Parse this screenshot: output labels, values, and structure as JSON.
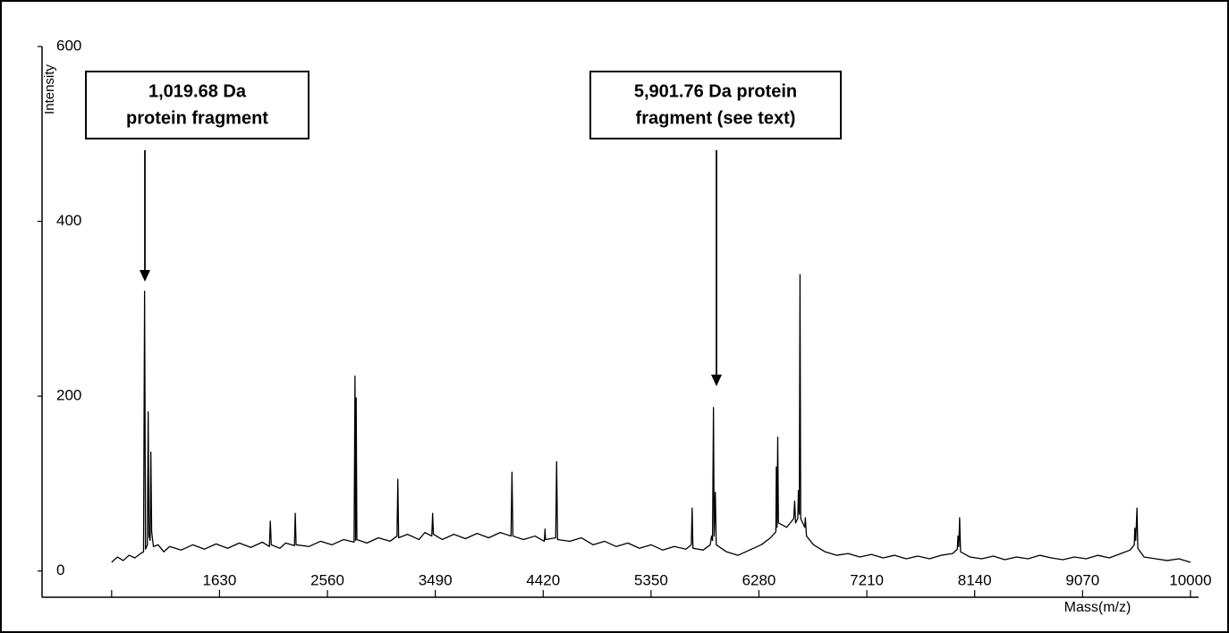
{
  "chart_data": {
    "type": "line",
    "x_label": "Mass(m/z)",
    "y_label": "Intensity",
    "color": "#000000",
    "grid": false,
    "xlim": [
      100,
      10070
    ],
    "ylim": [
      -30,
      600
    ],
    "xticks": [
      {
        "value": 700,
        "label": null
      },
      1630,
      2560,
      3490,
      4420,
      5350,
      6280,
      7210,
      8140,
      9070,
      10000
    ],
    "yticks": [
      0,
      200,
      400,
      600
    ],
    "annotations": [
      {
        "lines": [
          "1,019.68 Da",
          "protein fragment"
        ]
      },
      {
        "lines": [
          "5,901.76 Da protein",
          "fragment (see text)"
        ]
      }
    ],
    "x": [
      700,
      750,
      800,
      850,
      900,
      950,
      975,
      984,
      992,
      1008,
      1015,
      1022,
      1032,
      1038,
      1045,
      1060,
      1100,
      1150,
      1200,
      1300,
      1400,
      1500,
      1600,
      1700,
      1800,
      1900,
      2000,
      2060,
      2068,
      2076,
      2150,
      2200,
      2276,
      2283,
      2290,
      2400,
      2500,
      2600,
      2700,
      2790,
      2798,
      2803,
      2808,
      2814,
      2900,
      3000,
      3100,
      3160,
      3167,
      3174,
      3250,
      3350,
      3400,
      3460,
      3467,
      3474,
      3550,
      3650,
      3750,
      3850,
      3950,
      4050,
      4143,
      4151,
      4159,
      4250,
      4350,
      4430,
      4436,
      4440,
      4528,
      4536,
      4544,
      4650,
      4750,
      4850,
      4950,
      5050,
      5150,
      5250,
      5350,
      5450,
      5550,
      5650,
      5697,
      5704,
      5711,
      5800,
      5860,
      5872,
      5880,
      5888,
      5894,
      5904,
      5912,
      6000,
      6100,
      6200,
      6300,
      6380,
      6426,
      6430,
      6436,
      6442,
      6448,
      6520,
      6580,
      6588,
      6596,
      6615,
      6620,
      6628,
      6634,
      6640,
      6675,
      6680,
      6690,
      6750,
      6850,
      6950,
      7050,
      7150,
      7250,
      7350,
      7450,
      7550,
      7650,
      7750,
      7850,
      7950,
      7990,
      7996,
      8003,
      8010,
      8018,
      8100,
      8200,
      8300,
      8400,
      8500,
      8600,
      8700,
      8800,
      8900,
      9000,
      9100,
      9200,
      9300,
      9400,
      9480,
      9516,
      9520,
      9528,
      9539,
      9546,
      9600,
      9700,
      9800,
      9900,
      10000
    ],
    "values": [
      10,
      16,
      12,
      18,
      15,
      20,
      22,
      320,
      25,
      30,
      182,
      40,
      35,
      136,
      45,
      28,
      30,
      22,
      28,
      24,
      30,
      25,
      31,
      26,
      32,
      27,
      33,
      28,
      57,
      30,
      26,
      32,
      29,
      66,
      30,
      28,
      34,
      30,
      36,
      33,
      223,
      35,
      198,
      36,
      32,
      38,
      34,
      40,
      105,
      38,
      42,
      36,
      44,
      40,
      66,
      42,
      36,
      42,
      37,
      43,
      38,
      44,
      40,
      113,
      40,
      36,
      40,
      34,
      48,
      36,
      38,
      125,
      36,
      34,
      38,
      30,
      34,
      28,
      32,
      26,
      30,
      24,
      28,
      25,
      30,
      72,
      26,
      24,
      30,
      40,
      35,
      187,
      40,
      90,
      30,
      22,
      18,
      24,
      30,
      38,
      45,
      119,
      50,
      153,
      55,
      50,
      60,
      80,
      55,
      60,
      92,
      65,
      339,
      60,
      50,
      61,
      40,
      30,
      22,
      18,
      20,
      16,
      19,
      15,
      18,
      14,
      17,
      14,
      18,
      20,
      25,
      40,
      28,
      61,
      22,
      16,
      14,
      17,
      13,
      16,
      14,
      18,
      15,
      13,
      16,
      14,
      18,
      15,
      20,
      24,
      30,
      49,
      35,
      72,
      26,
      16,
      14,
      12,
      14,
      10
    ]
  }
}
